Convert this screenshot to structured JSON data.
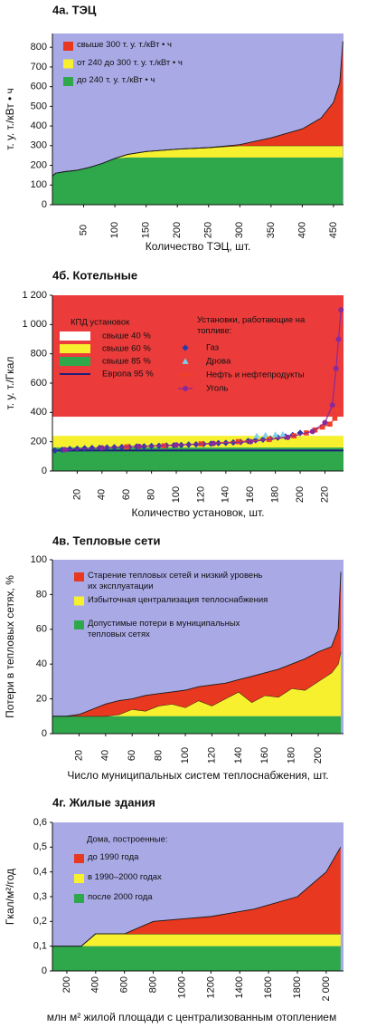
{
  "chart_data": [
    {
      "type": "area",
      "stacked": true,
      "title": "4а. ТЭЦ",
      "ylabel": "т. у. т./кВт • ч",
      "xlabel": "Количество ТЭЦ, шт.",
      "background": "#a9a9e6",
      "outline": "#1a1a1a",
      "x": [
        0,
        5,
        20,
        40,
        60,
        80,
        100,
        120,
        150,
        200,
        250,
        300,
        350,
        400,
        430,
        450,
        460,
        465
      ],
      "series": [
        {
          "name": "до 240 т. у. т./кВт • ч",
          "color": "#2fa84b",
          "values": [
            145,
            160,
            168,
            175,
            190,
            210,
            235,
            240,
            240,
            240,
            240,
            240,
            240,
            240,
            240,
            240,
            240,
            240
          ]
        },
        {
          "name": "от 240 до 300 т. у. т./кВт • ч",
          "color": "#f6f02e",
          "values": [
            0,
            0,
            0,
            0,
            0,
            0,
            0,
            15,
            30,
            42,
            50,
            60,
            60,
            60,
            60,
            60,
            60,
            60
          ]
        },
        {
          "name": "свыше 300 т. у. т./кВт • ч",
          "color": "#e8381f",
          "values": [
            0,
            0,
            0,
            0,
            0,
            0,
            0,
            0,
            0,
            0,
            0,
            5,
            40,
            85,
            140,
            220,
            320,
            530
          ]
        }
      ],
      "xlim": [
        0,
        466
      ],
      "xticks": [
        50,
        100,
        150,
        200,
        250,
        300,
        350,
        400,
        450
      ],
      "ylim": [
        0,
        870
      ],
      "yticks": [
        0,
        100,
        200,
        300,
        400,
        500,
        600,
        700,
        800
      ]
    },
    {
      "type": "scatter",
      "title": "4б. Котельные",
      "ylabel": "т. у. т./Гкал",
      "xlabel": "Количество установок, шт.",
      "bands_title": "КПД установок",
      "bands": [
        {
          "color": "#ec3b3b",
          "range": [
            370,
            1200
          ]
        },
        {
          "name": "свыше 40 %",
          "color": "#ffffff",
          "range": [
            240,
            370
          ]
        },
        {
          "name": "свыше 60 %",
          "color": "#f6f02e",
          "range": [
            160,
            240
          ]
        },
        {
          "name": "свыше 85 %",
          "color": "#2fa84b",
          "range": [
            0,
            160
          ]
        }
      ],
      "reference": {
        "name": "Европа 95 %",
        "value": 140,
        "color": "#1e1e7a"
      },
      "legend_title": "Установки, работающие на топливе:",
      "series": [
        {
          "name": "Газ",
          "color": "#2a3aa8",
          "marker": "diamond",
          "x": [
            2,
            8,
            14,
            20,
            26,
            32,
            38,
            44,
            50,
            56,
            62,
            68,
            74,
            80,
            86,
            92,
            98,
            104,
            110,
            116,
            122,
            128,
            134,
            140,
            146,
            152,
            158,
            164,
            170,
            176,
            182,
            188,
            194,
            200
          ],
          "values": [
            140,
            145,
            150,
            152,
            155,
            157,
            158,
            160,
            162,
            163,
            165,
            167,
            168,
            170,
            172,
            174,
            175,
            177,
            180,
            182,
            184,
            186,
            190,
            192,
            195,
            198,
            205,
            210,
            215,
            220,
            228,
            235,
            245,
            260
          ]
        },
        {
          "name": "Дрова",
          "color": "#7fd0ee",
          "marker": "triangle",
          "x": [
            165,
            172,
            180,
            186
          ],
          "values": [
            240,
            245,
            248,
            250
          ]
        },
        {
          "name": "Нефть и нефтепродукты",
          "color": "#f0402a",
          "marker": "square",
          "line": true,
          "x": [
            60,
            90,
            120,
            150,
            175,
            195,
            205,
            212,
            218,
            224,
            228,
            230
          ],
          "values": [
            165,
            172,
            185,
            200,
            215,
            240,
            260,
            280,
            300,
            320,
            360,
            420
          ]
        },
        {
          "name": "Уголь",
          "color": "#8a2a9a",
          "marker": "circle",
          "line": true,
          "x": [
            10,
            40,
            70,
            100,
            130,
            160,
            190,
            210,
            220,
            226,
            229,
            231,
            233
          ],
          "values": [
            145,
            158,
            168,
            178,
            188,
            200,
            230,
            270,
            330,
            450,
            700,
            900,
            1100
          ]
        }
      ],
      "xlim": [
        0,
        235
      ],
      "xticks": [
        20,
        40,
        60,
        80,
        100,
        120,
        140,
        160,
        180,
        200,
        220
      ],
      "ylim": [
        0,
        1200
      ],
      "yticks": [
        0,
        200,
        400,
        600,
        800,
        {
          "value": 1000,
          "label": "1 000"
        },
        {
          "value": 1200,
          "label": "1 200"
        }
      ]
    },
    {
      "type": "area",
      "stacked": true,
      "title": "4в. Тепловые сети",
      "ylabel": "Потери в тепловых сетях, %",
      "xlabel": "Число муниципальных систем теплоснабжения, шт.",
      "background": "#a9a9e6",
      "outline": "#1a1a1a",
      "x": [
        0,
        5,
        10,
        20,
        30,
        40,
        50,
        60,
        70,
        80,
        90,
        100,
        110,
        120,
        130,
        140,
        150,
        160,
        170,
        180,
        190,
        200,
        210,
        215,
        217
      ],
      "series": [
        {
          "name": "Допустимые потери в муниципальных тепловых сетях",
          "color": "#2fa84b",
          "values": [
            10,
            10,
            10,
            10,
            10,
            10,
            10,
            10,
            10,
            10,
            10,
            10,
            10,
            10,
            10,
            10,
            10,
            10,
            10,
            10,
            10,
            10,
            10,
            10,
            10
          ]
        },
        {
          "name": "Избыточная централизация теплоснабжения",
          "color": "#f6f02e",
          "values": [
            0,
            0,
            0,
            0,
            0,
            0,
            1,
            4,
            3,
            6,
            7,
            5,
            9,
            6,
            10,
            14,
            8,
            12,
            11,
            16,
            15,
            20,
            25,
            30,
            37
          ]
        },
        {
          "name": "Старение тепловых сетей и низкий уровень их эксплуатации",
          "color": "#e8381f",
          "values": [
            0,
            0,
            0,
            1,
            4,
            7,
            8,
            6,
            9,
            7,
            7,
            10,
            8,
            12,
            9,
            7,
            15,
            13,
            16,
            14,
            18,
            17,
            15,
            20,
            46
          ]
        }
      ],
      "xlim": [
        0,
        219
      ],
      "xticks": [
        20,
        40,
        60,
        80,
        100,
        120,
        140,
        160,
        180,
        200
      ],
      "ylim": [
        0,
        100
      ],
      "yticks": [
        0,
        20,
        40,
        60,
        80,
        100
      ]
    },
    {
      "type": "area",
      "stacked": true,
      "title": "4г. Жилые здания",
      "ylabel": "Гкал/м²/год",
      "xlabel": "млн м² жилой площади с централизованным отоплением",
      "background": "#a9a9e6",
      "outline": "#1a1a1a",
      "legend_title": "Дома, построенные:",
      "x": [
        100,
        300,
        400,
        600,
        800,
        1000,
        1200,
        1500,
        1800,
        2000,
        2100
      ],
      "series": [
        {
          "name": "после 2000 года",
          "color": "#2fa84b",
          "values": [
            0.1,
            0.1,
            0.1,
            0.1,
            0.1,
            0.1,
            0.1,
            0.1,
            0.1,
            0.1,
            0.1
          ]
        },
        {
          "name": "в 1990–2000 годах",
          "color": "#f6f02e",
          "values": [
            0,
            0,
            0.05,
            0.05,
            0.05,
            0.05,
            0.05,
            0.05,
            0.05,
            0.05,
            0.05
          ]
        },
        {
          "name": "до 1990 года",
          "color": "#e8381f",
          "values": [
            0,
            0,
            0,
            0,
            0.05,
            0.06,
            0.07,
            0.1,
            0.15,
            0.25,
            0.35
          ]
        }
      ],
      "xlim": [
        100,
        2120
      ],
      "xticks": [
        200,
        400,
        600,
        800,
        1000,
        1200,
        1400,
        1600,
        1800,
        {
          "value": 2000,
          "label": "2 000"
        }
      ],
      "ylim": [
        0,
        0.6
      ],
      "yticks": [
        0,
        {
          "value": 0.1,
          "label": "0,1"
        },
        {
          "value": 0.2,
          "label": "0,2"
        },
        {
          "value": 0.3,
          "label": "0,3"
        },
        {
          "value": 0.4,
          "label": "0,4"
        },
        {
          "value": 0.5,
          "label": "0,5"
        },
        {
          "value": 0.6,
          "label": "0,6"
        }
      ]
    }
  ]
}
